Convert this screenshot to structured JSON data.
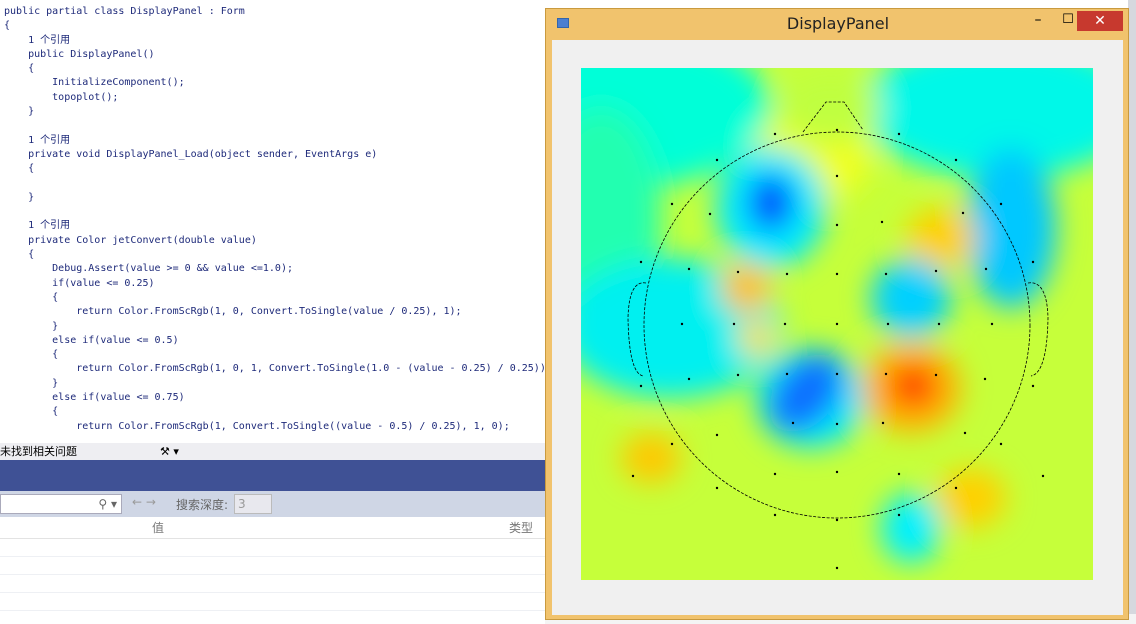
{
  "editor": {
    "code": "public partial class DisplayPanel : Form\n{\n    1 个引用\n    public DisplayPanel()\n    {\n        InitializeComponent();\n        topoplot();\n    }\n\n    1 个引用\n    private void DisplayPanel_Load(object sender, EventArgs e)\n    {\n\n    }\n\n    1 个引用\n    private Color jetConvert(double value)\n    {\n        Debug.Assert(value >= 0 && value <=1.0);\n        if(value <= 0.25)\n        {\n            return Color.FromScRgb(1, 0, Convert.ToSingle(value / 0.25), 1);\n        }\n        else if(value <= 0.5)\n        {\n            return Color.FromScRgb(1, 0, 1, Convert.ToSingle(1.0 - (value - 0.25) / 0.25));\n        }\n        else if(value <= 0.75)\n        {\n            return Color.FromScRgb(1, Convert.ToSingle((value - 0.5) / 0.25), 1, 0);",
    "status": "未找到相关问题"
  },
  "window": {
    "title": "DisplayPanel"
  },
  "locals": {
    "search_depth_label": "搜索深度:",
    "search_depth": "3",
    "columns": [
      "值",
      "类型"
    ]
  }
}
